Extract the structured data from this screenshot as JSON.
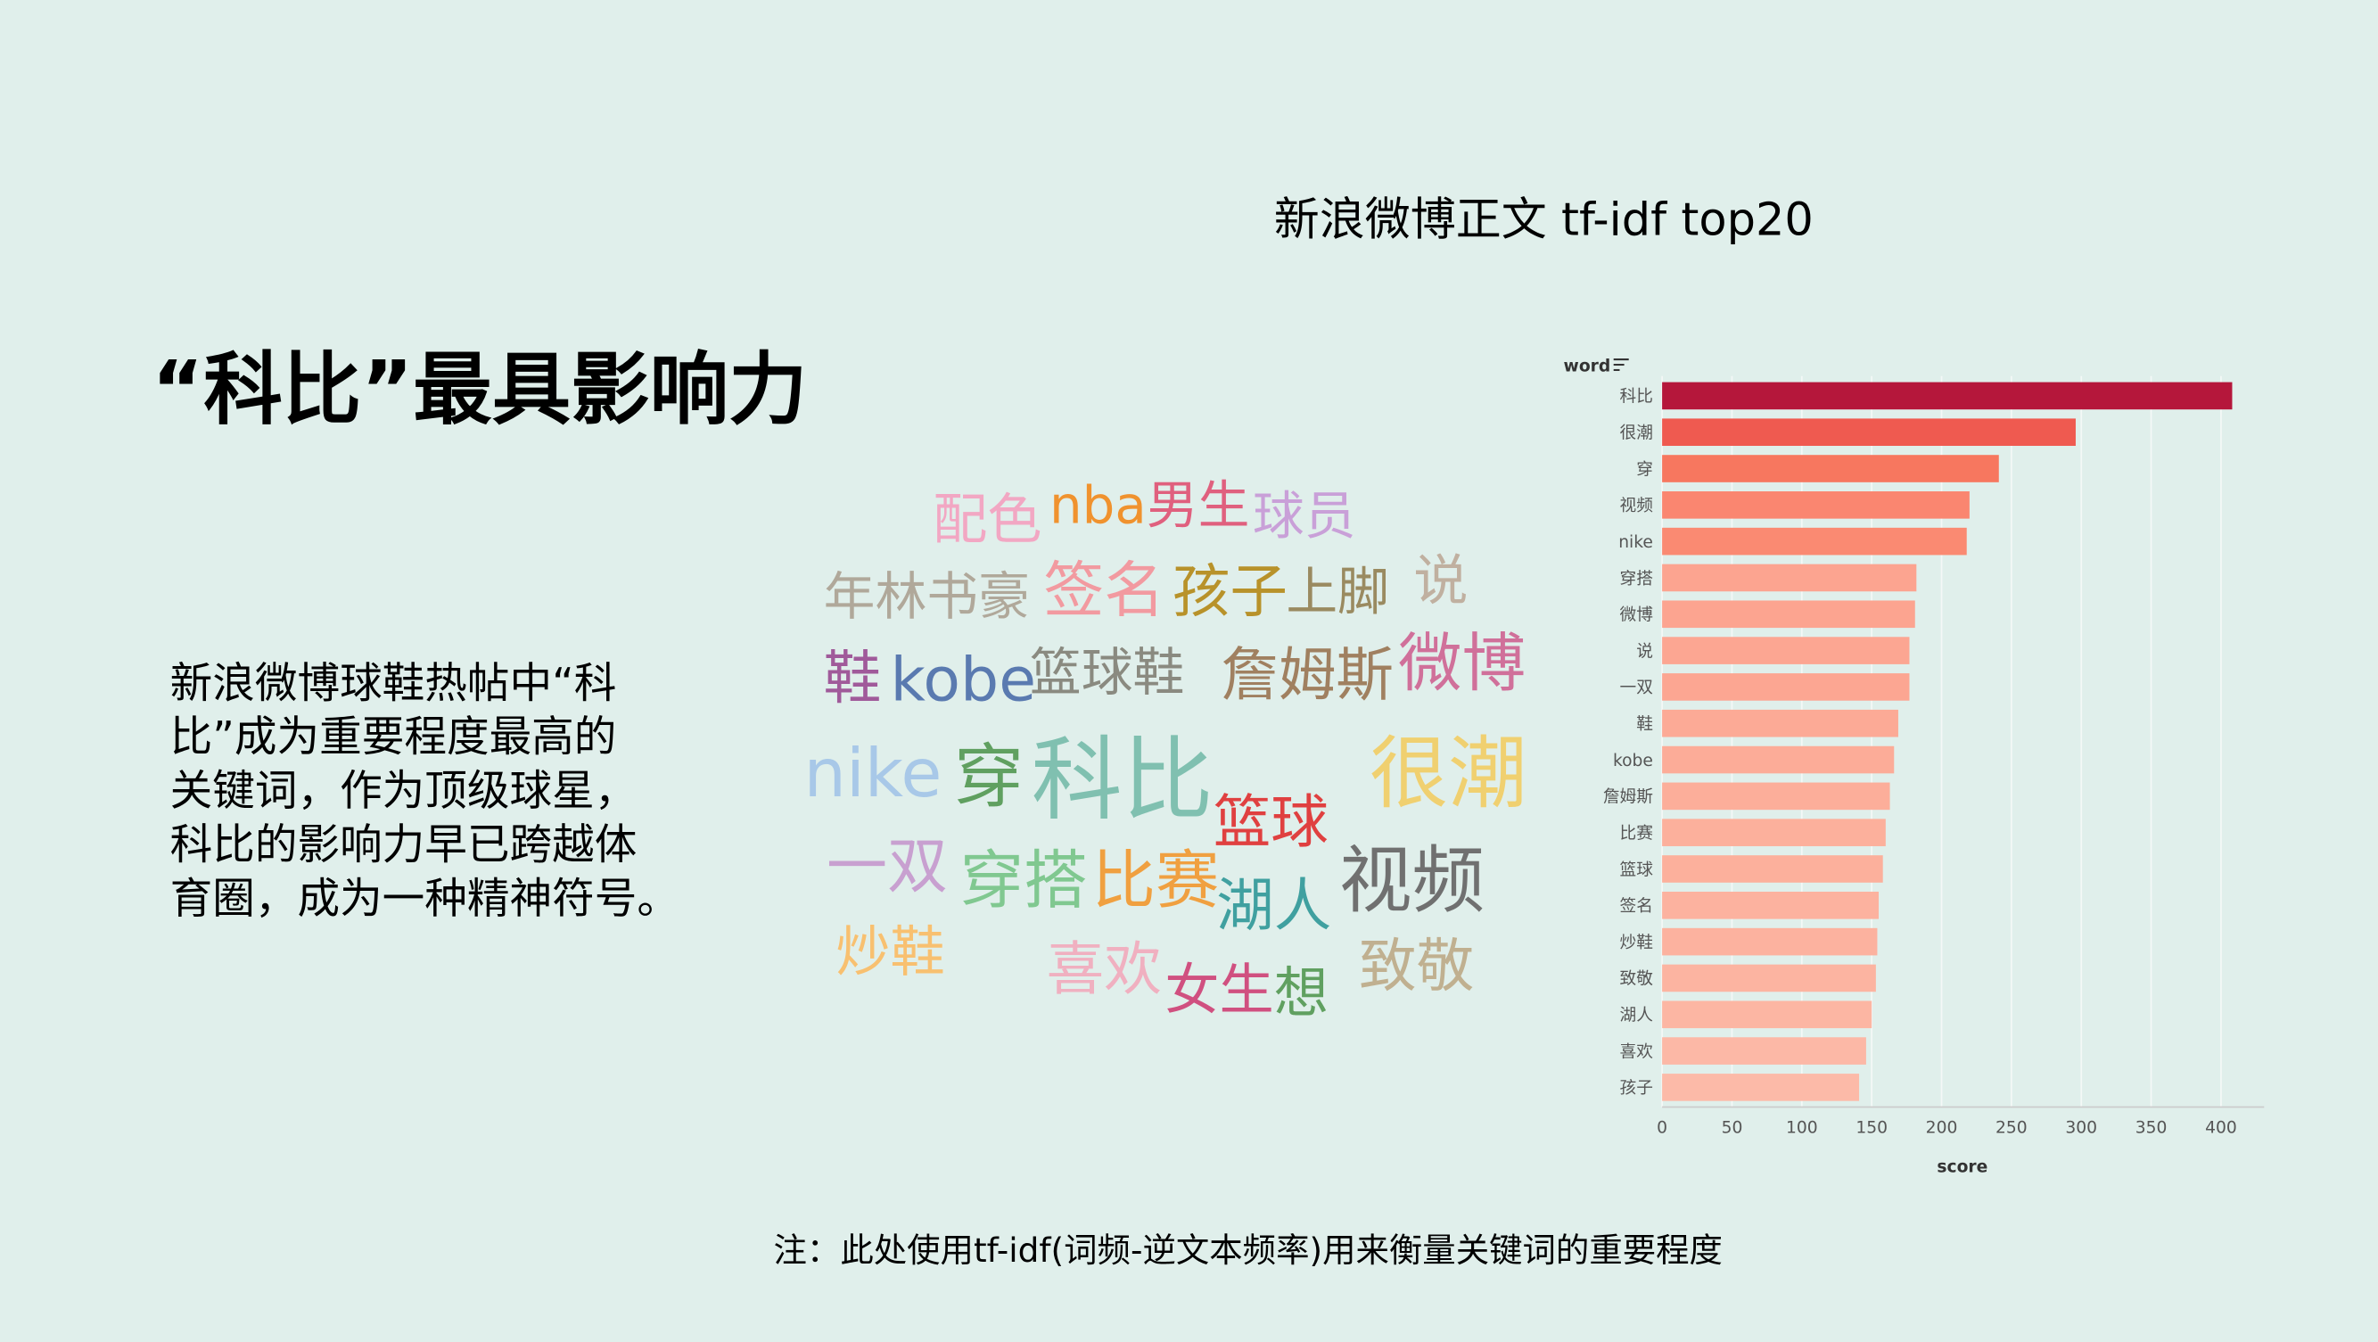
{
  "title": "“科比”最具影响力",
  "body_lines": [
    "新浪微博球鞋热帖中“科",
    "比”成为重要程度最高的",
    "关键词，作为顶级球星，",
    "科比的影响力早已跨越体",
    "育圈，成为一种精神符号。"
  ],
  "note": "注：此处使用tf-idf(词频-逆文本频率)用来衡量关键词的重要程度",
  "word_cloud": [
    {
      "text": "配色",
      "color": "#f2a7c3"
    },
    {
      "text": "nba",
      "color": "#f0922e"
    },
    {
      "text": "男生",
      "color": "#e0607e"
    },
    {
      "text": "球员",
      "color": "#c9a0d8"
    },
    {
      "text": "年林书豪",
      "color": "#b0a89a"
    },
    {
      "text": "签名",
      "color": "#f29aa0"
    },
    {
      "text": "孩子",
      "color": "#b8922a"
    },
    {
      "text": "上脚",
      "color": "#9a8a60"
    },
    {
      "text": "说",
      "color": "#c0b0a0"
    },
    {
      "text": "鞋",
      "color": "#a05a9a"
    },
    {
      "text": "kobe",
      "color": "#5a7ab0"
    },
    {
      "text": "篮球鞋",
      "color": "#8a8a80"
    },
    {
      "text": "詹姆斯",
      "color": "#a08060"
    },
    {
      "text": "微博",
      "color": "#d0709a"
    },
    {
      "text": "nike",
      "color": "#a8c8e8"
    },
    {
      "text": "穿",
      "color": "#60a060"
    },
    {
      "text": "科比",
      "color": "#80c0b0"
    },
    {
      "text": "很潮",
      "color": "#f0d070"
    },
    {
      "text": "篮球",
      "color": "#e04040"
    },
    {
      "text": "一双",
      "color": "#c8a0d0"
    },
    {
      "text": "穿搭",
      "color": "#80c890"
    },
    {
      "text": "比赛",
      "color": "#f0a040"
    },
    {
      "text": "湖人",
      "color": "#40a0a0"
    },
    {
      "text": "视频",
      "color": "#707070"
    },
    {
      "text": "炒鞋",
      "color": "#f8c070"
    },
    {
      "text": "喜欢",
      "color": "#f0b0c0"
    },
    {
      "text": "女生",
      "color": "#d05080"
    },
    {
      "text": "想",
      "color": "#60a060"
    },
    {
      "text": "致敬",
      "color": "#c0b090"
    }
  ],
  "chart_data": {
    "type": "bar",
    "orientation": "horizontal",
    "title": "新浪微博正文 tf-idf top20",
    "y_label": "word",
    "x_label": "score",
    "categories": [
      "科比",
      "很潮",
      "穿",
      "视频",
      "nike",
      "穿搭",
      "微博",
      "说",
      "一双",
      "鞋",
      "kobe",
      "詹姆斯",
      "比赛",
      "篮球",
      "签名",
      "炒鞋",
      "致敬",
      "湖人",
      "喜欢",
      "孩子"
    ],
    "values": [
      408,
      296,
      241,
      220,
      218,
      182,
      181,
      177,
      177,
      169,
      166,
      163,
      160,
      158,
      155,
      154,
      153,
      150,
      146,
      141
    ],
    "colors": [
      "#b5173b",
      "#ef5a50",
      "#f7775f",
      "#fa8670",
      "#fa8a72",
      "#fca490",
      "#fca490",
      "#fca692",
      "#fca692",
      "#fcaa96",
      "#fcac98",
      "#fcae9a",
      "#fcb09c",
      "#fcb09c",
      "#fcb29f",
      "#fcb29f",
      "#fcb4a1",
      "#fcb6a3",
      "#fcb8a6",
      "#fcbaa8"
    ],
    "xlim": [
      0,
      420
    ],
    "xticks": [
      0,
      50,
      100,
      150,
      200,
      250,
      300,
      350,
      400
    ],
    "grid": true
  }
}
